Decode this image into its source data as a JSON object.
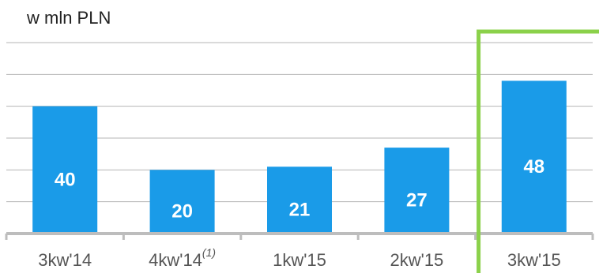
{
  "unit_label": "w mln PLN",
  "colors": {
    "bar": "#1a9be8",
    "grid": "#b5b5b5",
    "axis": "#bdbdbd",
    "highlight": "#8bd14a",
    "label": "#555555",
    "value": "#ffffff"
  },
  "chart_data": {
    "type": "bar",
    "categories": [
      "3kw'14",
      "4kw'14",
      "1kw'15",
      "2kw'15",
      "3kw'15"
    ],
    "category_superscripts": [
      "",
      "(1)",
      "",
      "",
      ""
    ],
    "values": [
      40,
      20,
      21,
      27,
      48
    ],
    "value_labels": [
      "40",
      "20",
      "21",
      "27",
      "48"
    ],
    "title": "",
    "xlabel": "",
    "ylabel": "w mln PLN",
    "ylim": [
      0,
      60
    ],
    "grid": true,
    "legend": "none",
    "highlighted_category": "3kw'15"
  }
}
